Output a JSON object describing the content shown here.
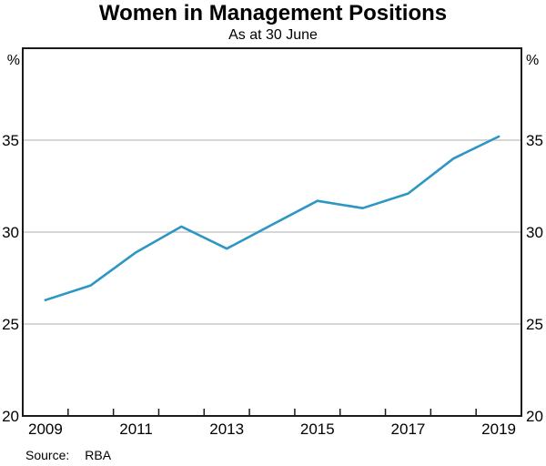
{
  "title": "Women in Management Positions",
  "subtitle": "As at 30 June",
  "footer": {
    "source_label": "Source:",
    "source_value": "RBA"
  },
  "chart_data": {
    "type": "line",
    "title": "Women in Management Positions",
    "subtitle": "As at 30 June",
    "x": [
      2009,
      2010,
      2011,
      2012,
      2013,
      2014,
      2015,
      2016,
      2017,
      2018,
      2019
    ],
    "series": [
      {
        "name": "Women in management positions",
        "color": "#2E96C4",
        "values": [
          26.3,
          27.1,
          28.9,
          30.3,
          29.1,
          30.4,
          31.7,
          31.3,
          32.1,
          34.0,
          35.2
        ]
      }
    ],
    "ylabel_left": "%",
    "ylabel_right": "%",
    "xlabel": "",
    "ylim": [
      20,
      40
    ],
    "yticks": [
      20,
      25,
      30,
      35
    ],
    "xtick_labels": [
      2009,
      2011,
      2013,
      2015,
      2017,
      2019
    ],
    "x_domain": [
      2009,
      2020
    ],
    "grid": true,
    "legend_position": "none",
    "grid_color": "#C9C9C9",
    "frame_color": "#1A1A1A",
    "text_color": "#000000"
  }
}
